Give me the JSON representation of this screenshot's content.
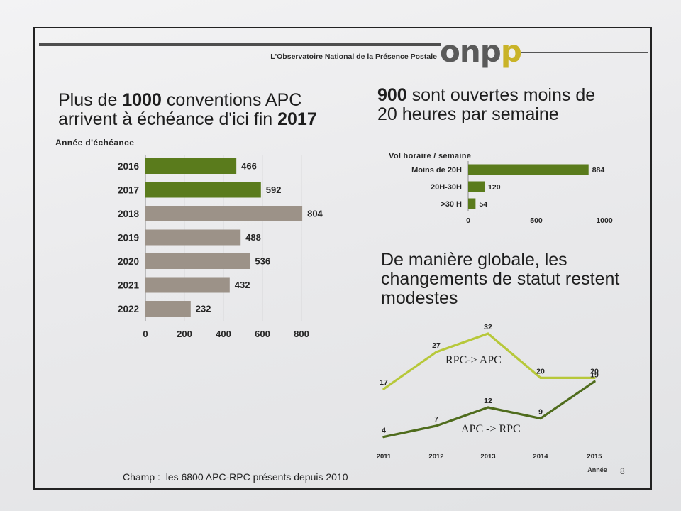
{
  "header": {
    "observatory": "L'Observatoire National de la Présence Postale",
    "logo_main": "onp",
    "logo_accent": "p",
    "logo_color": "#5a5a5a",
    "logo_accent_color": "#c9b328"
  },
  "left_title": {
    "l1_before": "Plus de ",
    "l1_number": "1000",
    "l1_after": " conventions APC",
    "l2_before": "arrivent à échéance d'ici fin ",
    "l2_number": "2017"
  },
  "right_title": {
    "l1_number": "900",
    "l1_after": " sont ouvertes moins de",
    "l2": "20 heures par semaine"
  },
  "line_title": {
    "l1": "De manière globale, les",
    "l2": "changements de statut restent",
    "l3": "modestes"
  },
  "footer": {
    "scope": "Champ :  les 6800 APC-RPC présents depuis 2010",
    "page_number": "8"
  },
  "chart_data": [
    {
      "type": "bar",
      "orientation": "horizontal",
      "category_axis_label": "Année d'échéance",
      "categories": [
        "2016",
        "2017",
        "2018",
        "2019",
        "2020",
        "2021",
        "2022"
      ],
      "values": [
        466,
        592,
        804,
        488,
        536,
        432,
        232
      ],
      "bar_colors": [
        "#5a7b1c",
        "#5a7b1c",
        "#9c9288",
        "#9c9288",
        "#9c9288",
        "#9c9288",
        "#9c9288"
      ],
      "value_axis_range": [
        0,
        800
      ],
      "value_axis_ticks": [
        0,
        200,
        400,
        600,
        800
      ],
      "data_labels": true
    },
    {
      "type": "bar",
      "orientation": "horizontal",
      "category_axis_label": "Vol horaire / semaine",
      "categories": [
        "Moins de 20H",
        "20H-30H",
        ">30 H"
      ],
      "values": [
        884,
        120,
        54
      ],
      "bar_colors": [
        "#5a7b1c",
        "#5a7b1c",
        "#5a7b1c"
      ],
      "value_axis_range": [
        0,
        1000
      ],
      "value_axis_ticks": [
        0,
        500,
        1000
      ],
      "data_labels": true
    },
    {
      "type": "line",
      "x": [
        "2011",
        "2012",
        "2013",
        "2014",
        "2015"
      ],
      "xlabel": "Année",
      "series": [
        {
          "name": "RPC-> APC",
          "values": [
            17,
            27,
            32,
            20,
            20
          ],
          "color": "#b7c83a"
        },
        {
          "name": "APC -> RPC",
          "values": [
            4,
            7,
            12,
            9,
            19
          ],
          "color": "#4f6c1d"
        }
      ],
      "data_labels": true,
      "grid": false
    }
  ]
}
